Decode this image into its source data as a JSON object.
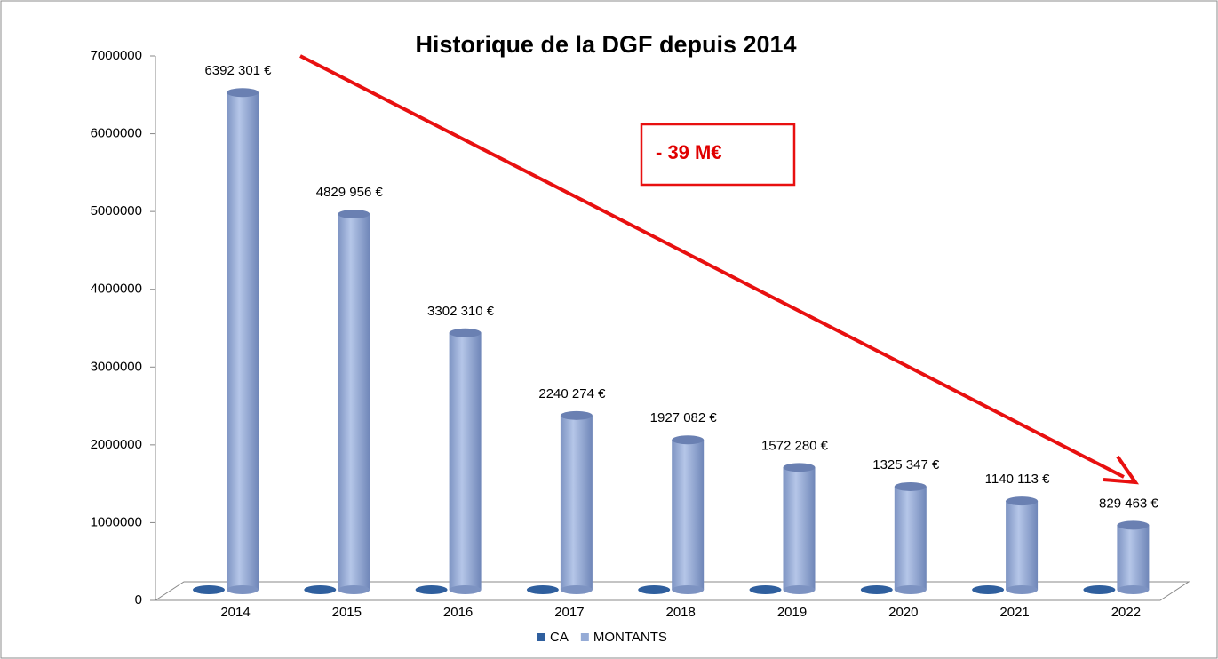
{
  "chart_data": {
    "type": "bar",
    "title": "Historique de la DGF depuis 2014",
    "categories": [
      "2014",
      "2015",
      "2016",
      "2017",
      "2018",
      "2019",
      "2020",
      "2021",
      "2022"
    ],
    "series": [
      {
        "name": "CA",
        "color": "#2f5f9e",
        "values": [
          0,
          0,
          0,
          0,
          0,
          0,
          0,
          0,
          0
        ]
      },
      {
        "name": "MONTANTS",
        "color": "#95abd6",
        "values": [
          6392301,
          4829956,
          3302310,
          2240274,
          1927082,
          1572280,
          1325347,
          1140113,
          829463
        ],
        "value_labels": [
          "6392 301 €",
          "4829 956 €",
          "3302 310 €",
          "2240 274 €",
          "1927 082 €",
          "1572 280 €",
          "1325 347 €",
          "1140 113 €",
          "829 463 €"
        ]
      }
    ],
    "ylim": [
      0,
      7000000
    ],
    "yticks": [
      0,
      1000000,
      2000000,
      3000000,
      4000000,
      5000000,
      6000000,
      7000000
    ],
    "annotation": "- 39 M€",
    "legend": "bottom"
  }
}
